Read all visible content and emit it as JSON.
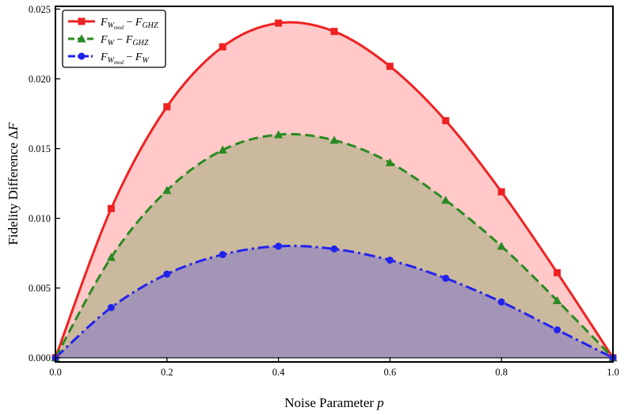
{
  "chart_data": {
    "type": "area",
    "xlabel_text": "Noise Parameter",
    "xlabel_var": "p",
    "ylabel_text": "Fidelity Difference Δ",
    "ylabel_var": "F",
    "xlim": [
      0.0,
      1.0
    ],
    "ylim": [
      -0.0003,
      0.0252
    ],
    "x_ticks": [
      0.0,
      0.2,
      0.4,
      0.6,
      0.8,
      1.0
    ],
    "x_tick_labels": [
      "0.0",
      "0.2",
      "0.4",
      "0.6",
      "0.8",
      "1.0"
    ],
    "y_ticks": [
      0.0,
      0.005,
      0.01,
      0.015,
      0.02,
      0.025
    ],
    "y_tick_labels": [
      "0.000",
      "0.005",
      "0.010",
      "0.015",
      "0.020",
      "0.025"
    ],
    "grid": false,
    "legend_position": "top-left",
    "x": [
      0.0,
      0.1,
      0.2,
      0.3,
      0.4,
      0.5,
      0.6,
      0.7,
      0.8,
      0.9,
      1.0
    ],
    "series": [
      {
        "id": "wmod_ghz",
        "legend": {
          "a": "F",
          "a_sub": "W",
          "a_subsub": "mod",
          "op": " − ",
          "b": "F",
          "b_sub": "GHZ"
        },
        "values": [
          0.0,
          0.0107,
          0.018,
          0.0223,
          0.024,
          0.0234,
          0.0209,
          0.017,
          0.0119,
          0.0061,
          0.0
        ],
        "color": "#ee2222",
        "fill": "#ffc9c9",
        "marker": "square",
        "line_style": "solid"
      },
      {
        "id": "w_ghz",
        "legend": {
          "a": "F",
          "a_sub": "W",
          "a_subsub": "",
          "op": " − ",
          "b": "F",
          "b_sub": "GHZ"
        },
        "values": [
          0.0,
          0.0072,
          0.012,
          0.0149,
          0.016,
          0.0156,
          0.014,
          0.0113,
          0.008,
          0.0041,
          0.0
        ],
        "color": "#2a8a22",
        "fill": "#cab99c",
        "marker": "triangle",
        "line_style": "dashed"
      },
      {
        "id": "wmod_w",
        "legend": {
          "a": "F",
          "a_sub": "W",
          "a_subsub": "mod",
          "op": " − ",
          "b": "F",
          "b_sub": "W"
        },
        "values": [
          0.0,
          0.0036,
          0.006,
          0.0074,
          0.008,
          0.0078,
          0.007,
          0.0057,
          0.004,
          0.002,
          0.0
        ],
        "color": "#2222ee",
        "fill": "#a395b6",
        "marker": "circle",
        "line_style": "dashdot"
      }
    ]
  }
}
